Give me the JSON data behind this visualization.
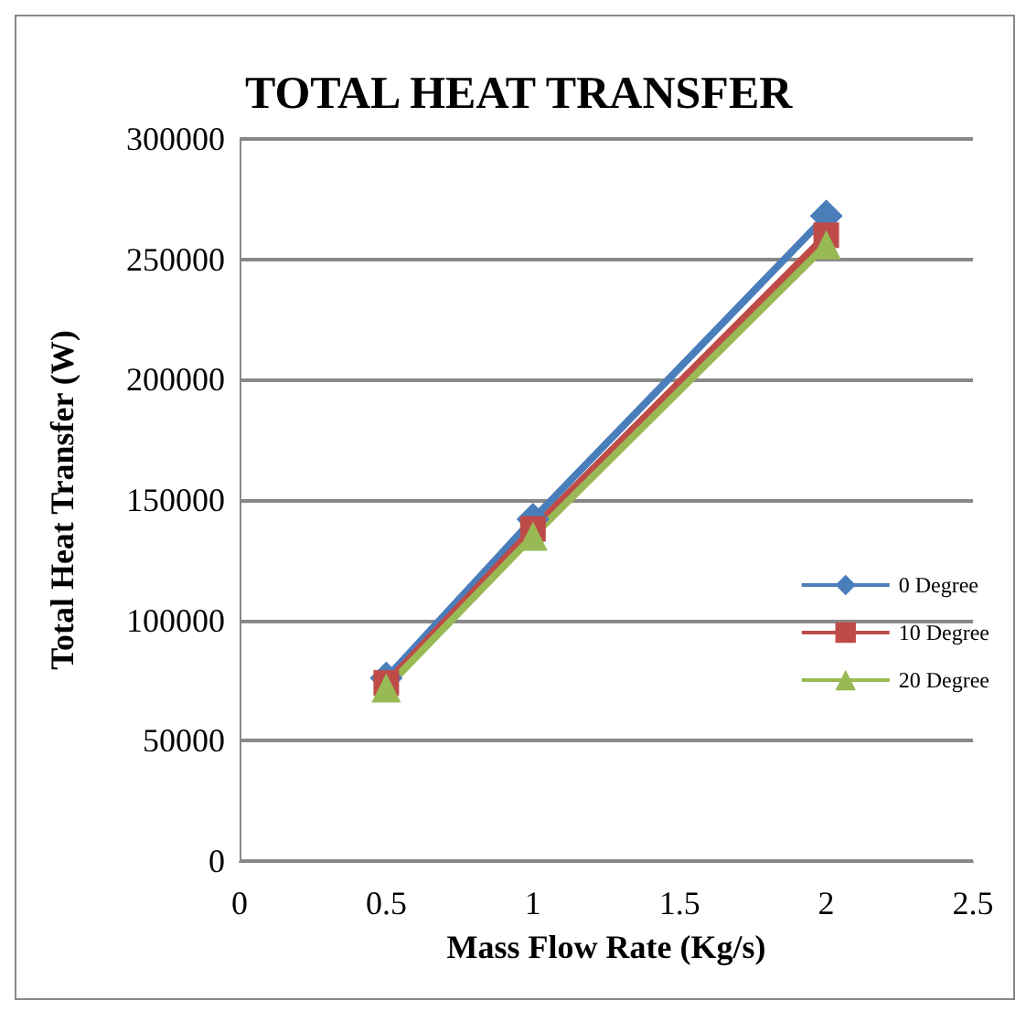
{
  "chart_data": {
    "type": "line",
    "title": "TOTAL HEAT TRANSFER",
    "xlabel": "Mass Flow Rate (Kg/s)",
    "ylabel": "Total Heat Transfer (W)",
    "x": [
      0.5,
      1,
      2
    ],
    "xlim": [
      0,
      2.5
    ],
    "xticks": [
      0,
      0.5,
      1,
      1.5,
      2,
      2.5
    ],
    "ylim": [
      0,
      300000
    ],
    "yticks": [
      0,
      50000,
      100000,
      150000,
      200000,
      250000,
      300000
    ],
    "grid": "y",
    "legend": "right",
    "series": [
      {
        "name": "0 Degree",
        "color": "#4a7ebb",
        "marker": "diamond",
        "values": [
          76000,
          142000,
          268000
        ]
      },
      {
        "name": "10 Degree",
        "color": "#be4b48",
        "marker": "square",
        "values": [
          74000,
          138000,
          260000
        ]
      },
      {
        "name": "20 Degree",
        "color": "#98b954",
        "marker": "triangle",
        "values": [
          72000,
          135000,
          256000
        ]
      }
    ]
  }
}
